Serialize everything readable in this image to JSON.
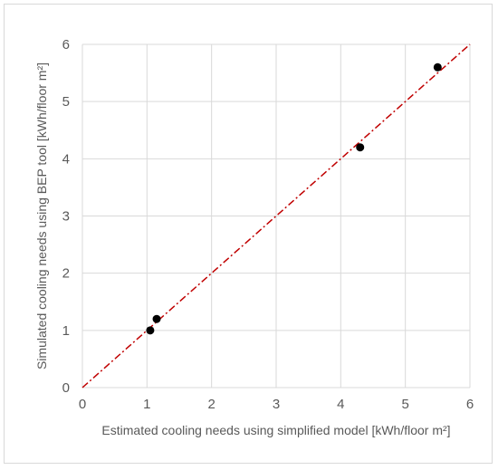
{
  "chart_data": {
    "type": "scatter",
    "title": "",
    "xlabel": "Estimated cooling needs using simplified model [kWh/floor m²]",
    "ylabel": "Simulated cooling needs using BEP tool [kWh/floor m²]",
    "xlim": [
      0,
      6
    ],
    "ylim": [
      0,
      6
    ],
    "xticks": [
      "0",
      "1",
      "2",
      "3",
      "4",
      "5",
      "6"
    ],
    "yticks": [
      "0",
      "1",
      "2",
      "3",
      "4",
      "5",
      "6"
    ],
    "grid": true,
    "series": [
      {
        "points": [
          {
            "x": 1.05,
            "y": 1.0
          },
          {
            "x": 1.15,
            "y": 1.2
          },
          {
            "x": 4.3,
            "y": 4.2
          },
          {
            "x": 5.5,
            "y": 5.6
          }
        ],
        "color": "#000000"
      }
    ],
    "reference_line": {
      "from": [
        0,
        0
      ],
      "to": [
        6,
        6
      ],
      "style": "dash-dot",
      "color": "#c00000"
    }
  }
}
